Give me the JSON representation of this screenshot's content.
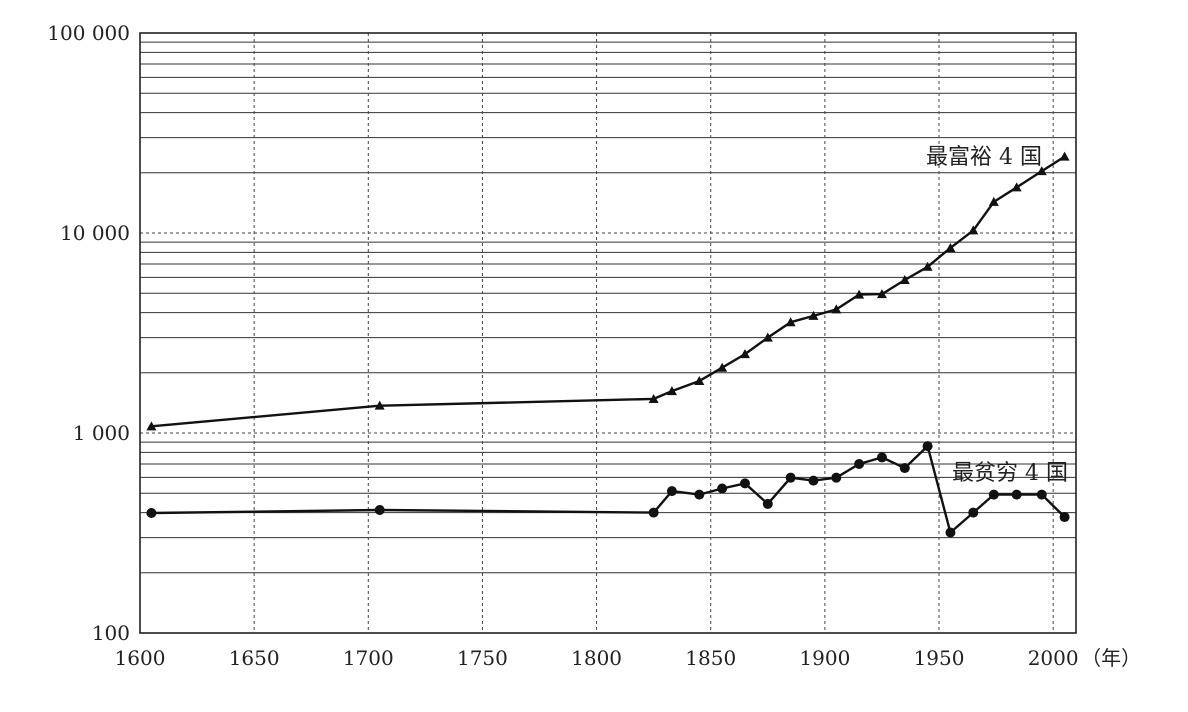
{
  "chart_data": {
    "type": "line",
    "title": "",
    "xlabel": "（年）",
    "ylabel": "",
    "y_scale": "log",
    "xlim": [
      1600,
      2010
    ],
    "ylim": [
      100,
      100000
    ],
    "grid": true,
    "x_ticks": [
      1600,
      1650,
      1700,
      1750,
      1800,
      1850,
      1900,
      1950,
      2000
    ],
    "x_tick_labels": [
      "1600",
      "1650",
      "1700",
      "1750",
      "1800",
      "1850",
      "1900",
      "1950",
      "2000"
    ],
    "y_ticks": [
      100,
      1000,
      10000,
      100000
    ],
    "y_tick_labels": [
      "100",
      "1 000",
      "10 000",
      "100 000"
    ],
    "series": [
      {
        "name": "最富裕 4 国",
        "marker": "triangle",
        "points": [
          [
            1605,
            1080
          ],
          [
            1705,
            1370
          ],
          [
            1825,
            1480
          ],
          [
            1833,
            1620
          ],
          [
            1845,
            1820
          ],
          [
            1855,
            2120
          ],
          [
            1865,
            2480
          ],
          [
            1875,
            3000
          ],
          [
            1885,
            3580
          ],
          [
            1895,
            3850
          ],
          [
            1905,
            4150
          ],
          [
            1915,
            4920
          ],
          [
            1925,
            4950
          ],
          [
            1935,
            5820
          ],
          [
            1945,
            6780
          ],
          [
            1955,
            8420
          ],
          [
            1965,
            10300
          ],
          [
            1974,
            14300
          ],
          [
            1984,
            16900
          ],
          [
            1995,
            20400
          ],
          [
            2005,
            24100
          ]
        ]
      },
      {
        "name": "最贫穷 4 国",
        "marker": "circle",
        "points": [
          [
            1605,
            398
          ],
          [
            1705,
            412
          ],
          [
            1825,
            400
          ],
          [
            1833,
            512
          ],
          [
            1845,
            492
          ],
          [
            1855,
            528
          ],
          [
            1865,
            560
          ],
          [
            1875,
            442
          ],
          [
            1885,
            598
          ],
          [
            1895,
            578
          ],
          [
            1905,
            598
          ],
          [
            1915,
            700
          ],
          [
            1925,
            755
          ],
          [
            1935,
            668
          ],
          [
            1945,
            860
          ],
          [
            1955,
            318
          ],
          [
            1965,
            400
          ],
          [
            1974,
            492
          ],
          [
            1984,
            492
          ],
          [
            1995,
            492
          ],
          [
            2005,
            380
          ]
        ]
      }
    ]
  }
}
